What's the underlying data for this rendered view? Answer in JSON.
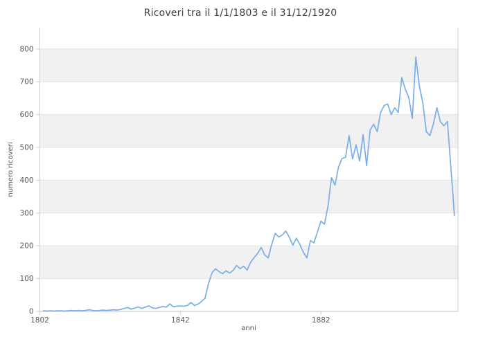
{
  "title": "Ricoveri tra il 1/1/1803 e il 31/12/1920",
  "chart_data": {
    "type": "line",
    "title": "Ricoveri tra il 1/1/1803 e il 31/12/1920",
    "xlabel": "anni",
    "ylabel": "numero ricoveri",
    "x_start": 1803,
    "x_end": 1920,
    "values": [
      2,
      1,
      2,
      1,
      2,
      2,
      1,
      2,
      3,
      2,
      3,
      2,
      3,
      5,
      3,
      2,
      3,
      4,
      3,
      4,
      5,
      4,
      6,
      9,
      12,
      7,
      10,
      14,
      9,
      13,
      17,
      11,
      9,
      12,
      15,
      13,
      23,
      14,
      16,
      17,
      16,
      18,
      27,
      18,
      22,
      30,
      40,
      85,
      118,
      130,
      121,
      115,
      124,
      117,
      125,
      140,
      130,
      138,
      126,
      150,
      164,
      177,
      195,
      172,
      163,
      205,
      238,
      227,
      233,
      245,
      226,
      202,
      223,
      204,
      180,
      163,
      216,
      209,
      242,
      275,
      266,
      320,
      408,
      385,
      440,
      466,
      470,
      536,
      465,
      508,
      458,
      539,
      444,
      553,
      571,
      548,
      607,
      628,
      632,
      600,
      621,
      607,
      713,
      678,
      652,
      588,
      776,
      688,
      635,
      548,
      536,
      571,
      621,
      578,
      566,
      579,
      436,
      292
    ],
    "xlim": [
      1802,
      1921
    ],
    "ylim": [
      0,
      865
    ],
    "xticks": [
      1802,
      1842,
      1882
    ],
    "yticks": [
      0,
      100,
      200,
      300,
      400,
      500,
      600,
      700,
      800
    ],
    "grid": "horizontal gridlines every 100, alternating shaded bands",
    "legend": "none",
    "line_color": "#79ade9",
    "band_color": "#f1f1f1",
    "gridline_color": "#e2e2e2",
    "axis_color": "#cccccc",
    "tick_text_color": "#5a5a5a"
  }
}
